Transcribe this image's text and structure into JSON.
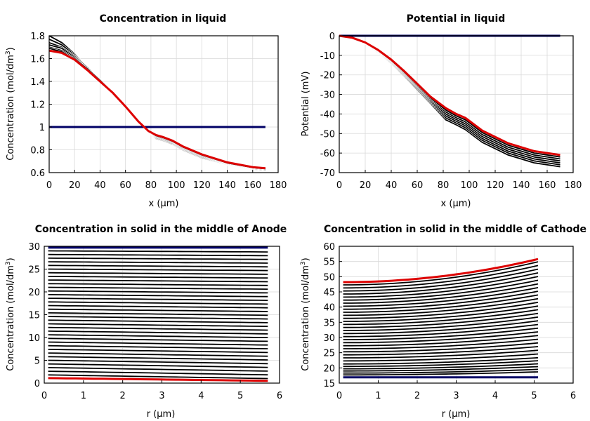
{
  "chart_data": [
    {
      "type": "line",
      "title": "Concentration in liquid",
      "xlabel": "x (µm)",
      "ylabel": "Concentration (mol/dm",
      "ylabel_sup": "3",
      "ylabel_end": ")",
      "xlim": [
        0,
        180
      ],
      "ylim": [
        0.6,
        1.8
      ],
      "xticks": [
        0,
        20,
        40,
        60,
        80,
        100,
        120,
        140,
        160,
        180
      ],
      "yticks": [
        0.6,
        0.8,
        1,
        1.2,
        1.4,
        1.6,
        1.8
      ],
      "xtick_labels": [
        "0",
        "20",
        "40",
        "60",
        "80",
        "100",
        "120",
        "140",
        "160",
        "180"
      ],
      "ytick_labels": [
        "0.6",
        "0.8",
        "1",
        "1.2",
        "1.4",
        "1.6",
        "1.8"
      ],
      "grid": true,
      "series_colors": {
        "initial": "#000066",
        "final": "#dd0000",
        "intermediate": "#000000"
      },
      "series": [
        {
          "role": "initial",
          "x": [
            0,
            170
          ],
          "y": [
            1.0,
            1.0
          ]
        },
        {
          "role": "intermediate",
          "x": [
            0,
            10,
            20,
            30,
            40,
            50,
            60,
            70,
            78,
            84,
            90,
            97,
            105,
            120,
            140,
            160,
            170
          ],
          "y": [
            1.8,
            1.74,
            1.64,
            1.52,
            1.41,
            1.3,
            1.18,
            1.05,
            0.96,
            0.9,
            0.88,
            0.85,
            0.8,
            0.73,
            0.67,
            0.63,
            0.62
          ]
        },
        {
          "role": "intermediate",
          "x": [
            0,
            10,
            20,
            30,
            40,
            50,
            60,
            70,
            78,
            84,
            90,
            97,
            105,
            120,
            140,
            160,
            170
          ],
          "y": [
            1.77,
            1.72,
            1.63,
            1.52,
            1.41,
            1.3,
            1.18,
            1.05,
            0.96,
            0.905,
            0.885,
            0.855,
            0.805,
            0.735,
            0.672,
            0.632,
            0.623
          ]
        },
        {
          "role": "intermediate",
          "x": [
            0,
            10,
            20,
            30,
            40,
            50,
            60,
            70,
            78,
            84,
            90,
            97,
            105,
            120,
            140,
            160,
            170
          ],
          "y": [
            1.74,
            1.7,
            1.62,
            1.52,
            1.41,
            1.3,
            1.18,
            1.05,
            0.96,
            0.91,
            0.89,
            0.86,
            0.81,
            0.74,
            0.675,
            0.635,
            0.626
          ]
        },
        {
          "role": "intermediate",
          "x": [
            0,
            10,
            20,
            30,
            40,
            50,
            60,
            70,
            78,
            84,
            90,
            97,
            105,
            120,
            140,
            160,
            170
          ],
          "y": [
            1.72,
            1.69,
            1.61,
            1.51,
            1.41,
            1.3,
            1.18,
            1.05,
            0.96,
            0.915,
            0.895,
            0.865,
            0.815,
            0.745,
            0.678,
            0.638,
            0.629
          ]
        },
        {
          "role": "intermediate",
          "x": [
            0,
            10,
            20,
            30,
            40,
            50,
            60,
            70,
            78,
            84,
            90,
            97,
            105,
            120,
            140,
            160,
            170
          ],
          "y": [
            1.7,
            1.67,
            1.6,
            1.51,
            1.41,
            1.3,
            1.18,
            1.05,
            0.965,
            0.92,
            0.9,
            0.87,
            0.82,
            0.75,
            0.682,
            0.641,
            0.632
          ]
        },
        {
          "role": "intermediate",
          "x": [
            0,
            10,
            20,
            30,
            40,
            50,
            60,
            70,
            78,
            84,
            90,
            97,
            105,
            120,
            140,
            160,
            170
          ],
          "y": [
            1.69,
            1.66,
            1.59,
            1.5,
            1.4,
            1.3,
            1.18,
            1.05,
            0.965,
            0.925,
            0.905,
            0.875,
            0.825,
            0.755,
            0.685,
            0.644,
            0.635
          ]
        },
        {
          "role": "final",
          "x": [
            0,
            10,
            20,
            30,
            40,
            50,
            60,
            70,
            78,
            84,
            90,
            97,
            105,
            120,
            140,
            160,
            170
          ],
          "y": [
            1.67,
            1.65,
            1.59,
            1.5,
            1.4,
            1.3,
            1.18,
            1.05,
            0.965,
            0.93,
            0.91,
            0.88,
            0.83,
            0.76,
            0.69,
            0.648,
            0.638
          ]
        }
      ]
    },
    {
      "type": "line",
      "title": "Potential in liquid",
      "xlabel": "x (µm)",
      "ylabel": "Potential (mV)",
      "ylabel_sup": "",
      "ylabel_end": "",
      "xlim": [
        0,
        180
      ],
      "ylim": [
        -70,
        0
      ],
      "xticks": [
        0,
        20,
        40,
        60,
        80,
        100,
        120,
        140,
        160,
        180
      ],
      "yticks": [
        -70,
        -60,
        -50,
        -40,
        -30,
        -20,
        -10,
        0
      ],
      "xtick_labels": [
        "0",
        "20",
        "40",
        "60",
        "80",
        "100",
        "120",
        "140",
        "160",
        "180"
      ],
      "ytick_labels": [
        "-70",
        "-60",
        "-50",
        "-40",
        "-30",
        "-20",
        "-10",
        "0"
      ],
      "grid": true,
      "series_colors": {
        "initial": "#000066",
        "final": "#dd0000",
        "intermediate": "#000000"
      },
      "series": [
        {
          "role": "initial",
          "x": [
            0,
            170
          ],
          "y": [
            0,
            0
          ]
        },
        {
          "role": "intermediate",
          "x": [
            0,
            10,
            20,
            30,
            40,
            50,
            60,
            70,
            82,
            90,
            97,
            110,
            130,
            150,
            170
          ],
          "y": [
            0,
            -1.3,
            -4.0,
            -8.5,
            -14.0,
            -20.5,
            -27.5,
            -34.5,
            -43.0,
            -45.5,
            -48.0,
            -54.5,
            -61.0,
            -65.0,
            -67.0
          ]
        },
        {
          "role": "intermediate",
          "x": [
            0,
            10,
            20,
            30,
            40,
            50,
            60,
            70,
            82,
            90,
            97,
            110,
            130,
            150,
            170
          ],
          "y": [
            0,
            -1.3,
            -3.9,
            -8.3,
            -13.7,
            -20.1,
            -27.0,
            -34.0,
            -42.0,
            -44.6,
            -47.0,
            -53.5,
            -60.0,
            -64.0,
            -66.0
          ]
        },
        {
          "role": "intermediate",
          "x": [
            0,
            10,
            20,
            30,
            40,
            50,
            60,
            70,
            82,
            90,
            97,
            110,
            130,
            150,
            170
          ],
          "y": [
            0,
            -1.2,
            -3.8,
            -8.1,
            -13.4,
            -19.7,
            -26.5,
            -33.4,
            -41.0,
            -43.7,
            -46.0,
            -52.5,
            -59.0,
            -63.0,
            -65.0
          ]
        },
        {
          "role": "intermediate",
          "x": [
            0,
            10,
            20,
            30,
            40,
            50,
            60,
            70,
            82,
            90,
            97,
            110,
            130,
            150,
            170
          ],
          "y": [
            0,
            -1.2,
            -3.7,
            -7.9,
            -13.1,
            -19.3,
            -26.0,
            -32.8,
            -40.0,
            -42.8,
            -45.0,
            -51.5,
            -58.0,
            -62.0,
            -64.0
          ]
        },
        {
          "role": "intermediate",
          "x": [
            0,
            10,
            20,
            30,
            40,
            50,
            60,
            70,
            82,
            90,
            97,
            110,
            130,
            150,
            170
          ],
          "y": [
            0,
            -1.1,
            -3.6,
            -7.7,
            -12.8,
            -18.9,
            -25.5,
            -32.2,
            -39.0,
            -41.9,
            -44.0,
            -50.5,
            -57.0,
            -61.0,
            -63.0
          ]
        },
        {
          "role": "intermediate",
          "x": [
            0,
            10,
            20,
            30,
            40,
            50,
            60,
            70,
            82,
            90,
            97,
            110,
            130,
            150,
            170
          ],
          "y": [
            0,
            -1.1,
            -3.5,
            -7.5,
            -12.5,
            -18.5,
            -25.0,
            -31.6,
            -38.0,
            -41.0,
            -43.0,
            -49.5,
            -56.0,
            -60.0,
            -62.0
          ]
        },
        {
          "role": "final",
          "x": [
            0,
            10,
            20,
            30,
            40,
            50,
            60,
            70,
            82,
            90,
            97,
            110,
            130,
            150,
            170
          ],
          "y": [
            0,
            -1.0,
            -3.4,
            -7.3,
            -12.2,
            -18.1,
            -24.5,
            -31.0,
            -37.0,
            -40.0,
            -42.0,
            -48.5,
            -55.0,
            -59.0,
            -61.0
          ]
        }
      ]
    },
    {
      "type": "line",
      "title": "Concentration in solid in the middle of Anode",
      "xlabel": "r (µm)",
      "ylabel": "Concentration (mol/dm",
      "ylabel_sup": "3",
      "ylabel_end": ")",
      "xlim": [
        0,
        6
      ],
      "ylim": [
        0,
        30
      ],
      "xticks": [
        0,
        1,
        2,
        3,
        4,
        5,
        6
      ],
      "yticks": [
        0,
        5,
        10,
        15,
        20,
        25,
        30
      ],
      "xtick_labels": [
        "0",
        "1",
        "2",
        "3",
        "4",
        "5",
        "6"
      ],
      "ytick_labels": [
        "0",
        "5",
        "10",
        "15",
        "20",
        "25",
        "30"
      ],
      "grid": true,
      "series_colors": {
        "initial": "#000066",
        "final": "#dd0000",
        "intermediate": "#000000"
      },
      "family": {
        "x_start": 0.1,
        "x_end": 5.7,
        "initial_value": 29.7,
        "final_left": 1.1,
        "final_right": 0.5,
        "intermediate_left": [
          29.0,
          28.2,
          27.4,
          26.6,
          25.8,
          25.0,
          24.2,
          23.4,
          22.6,
          21.8,
          21.0,
          20.2,
          19.4,
          18.6,
          17.8,
          17.0,
          16.2,
          15.4,
          14.6,
          13.8,
          13.0,
          12.2,
          11.4,
          10.6,
          9.8,
          9.0,
          8.2,
          7.4,
          6.6,
          5.8,
          5.0,
          4.2,
          3.4,
          2.6,
          1.8
        ],
        "drop": 0.8
      }
    },
    {
      "type": "line",
      "title": "Concentration in solid in the middle of Cathode",
      "xlabel": "r (µm)",
      "ylabel": "Concentration (mol/dm",
      "ylabel_sup": "3",
      "ylabel_end": ")",
      "xlim": [
        0,
        6
      ],
      "ylim": [
        15,
        60
      ],
      "xticks": [
        0,
        1,
        2,
        3,
        4,
        5,
        6
      ],
      "yticks": [
        15,
        20,
        25,
        30,
        35,
        40,
        45,
        50,
        55,
        60
      ],
      "xtick_labels": [
        "0",
        "1",
        "2",
        "3",
        "4",
        "5",
        "6"
      ],
      "ytick_labels": [
        "15",
        "20",
        "25",
        "30",
        "35",
        "40",
        "45",
        "50",
        "55",
        "60"
      ],
      "grid": true,
      "series_colors": {
        "initial": "#000066",
        "final": "#dd0000",
        "intermediate": "#000000"
      },
      "family": {
        "x_start": 0.1,
        "x_end": 5.1,
        "initial_value": 16.9,
        "final_left": 48.2,
        "final_right": 55.8,
        "intermediate_left": [
          47.3,
          46.3,
          45.3,
          44.3,
          43.3,
          42.3,
          41.3,
          40.3,
          39.3,
          38.3,
          37.3,
          36.3,
          35.3,
          34.3,
          33.3,
          32.3,
          31.3,
          30.3,
          29.3,
          28.3,
          27.3,
          26.3,
          25.3,
          24.3,
          23.3,
          22.3,
          21.3,
          20.5,
          19.7,
          19.0,
          18.3,
          17.7
        ],
        "rise_max": 7.6,
        "rise_min": 1.0
      }
    }
  ]
}
